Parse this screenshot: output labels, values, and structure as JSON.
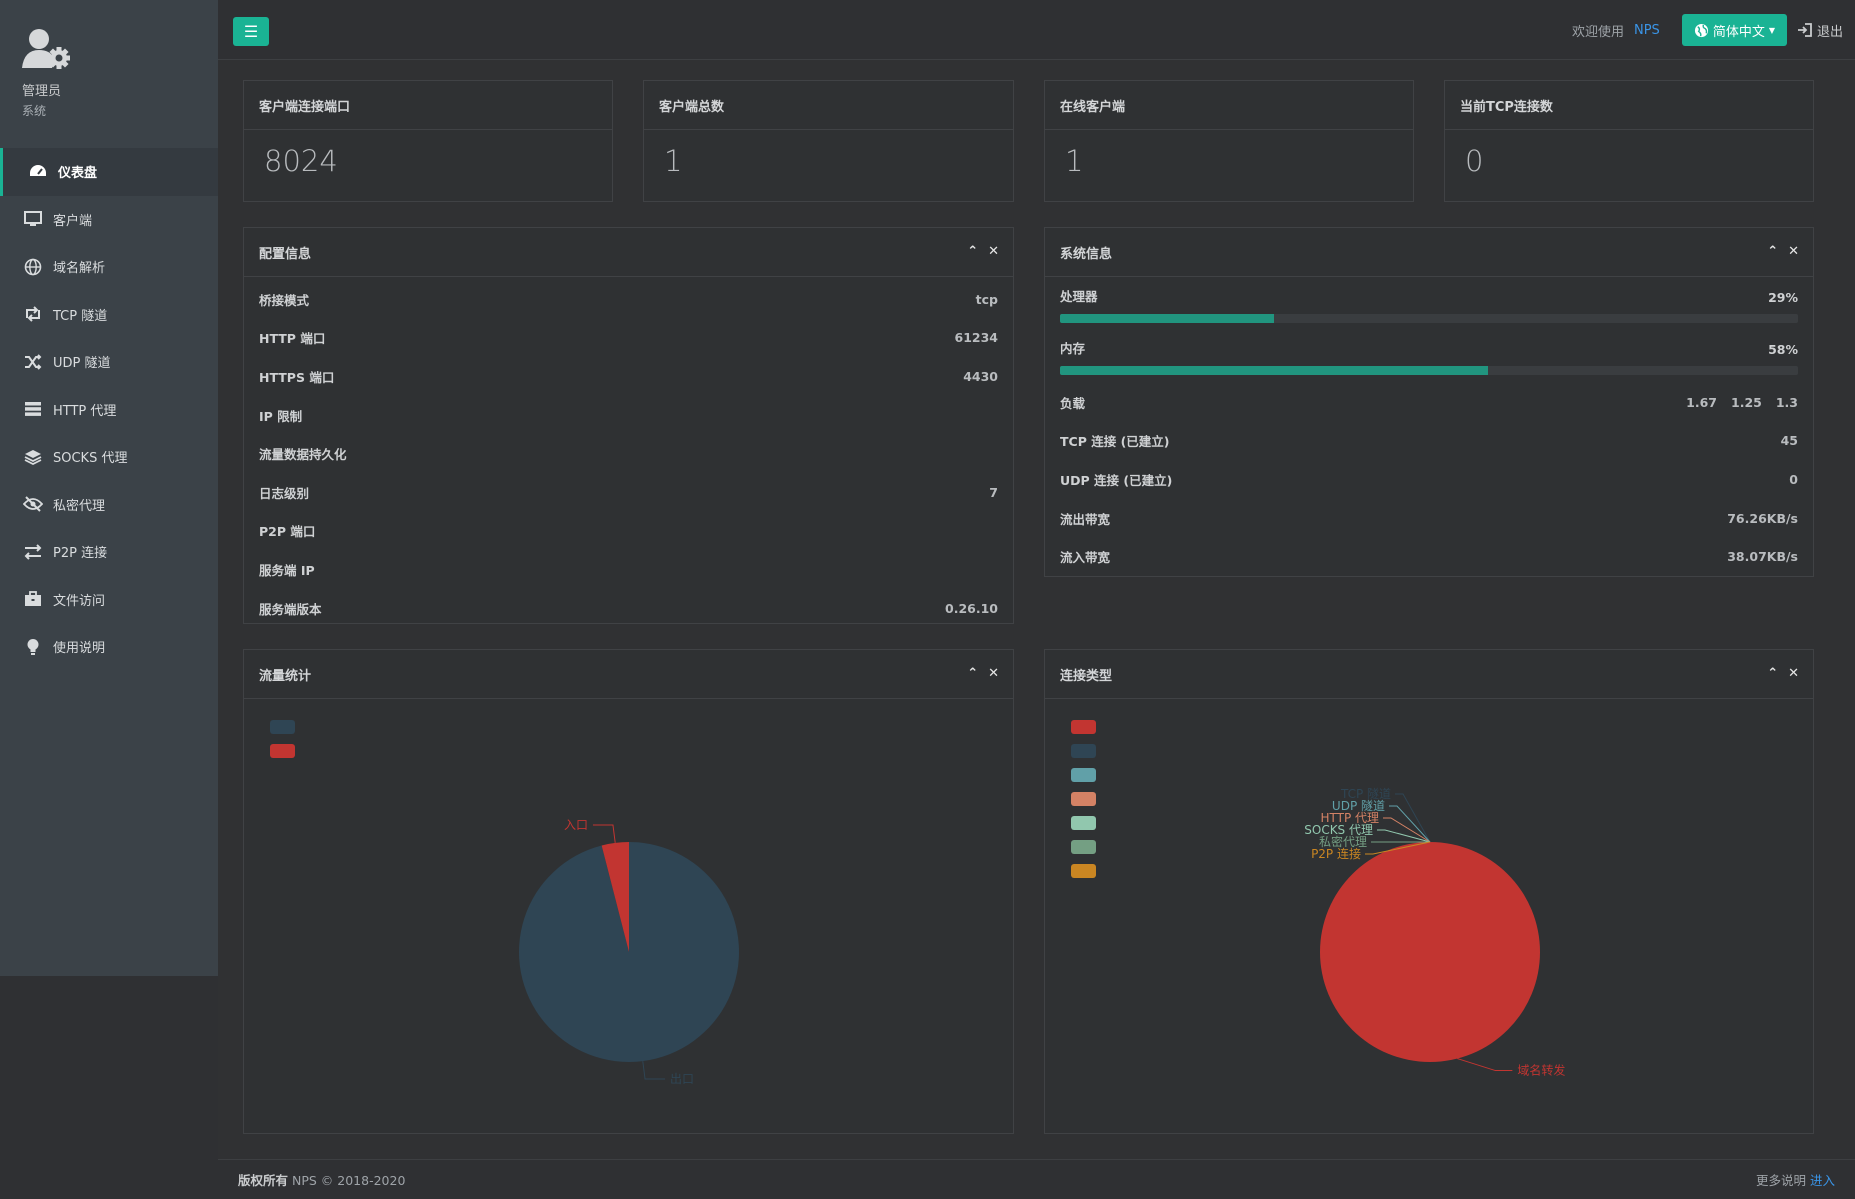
{
  "sidebar": {
    "profile": {
      "name": "管理员",
      "role": "系统"
    },
    "items": [
      {
        "label": "仪表盘",
        "icon": "dashboard-icon"
      },
      {
        "label": "客户端",
        "icon": "monitor-icon"
      },
      {
        "label": "域名解析",
        "icon": "globe-icon"
      },
      {
        "label": "TCP 隧道",
        "icon": "retweet-icon"
      },
      {
        "label": "UDP 隧道",
        "icon": "shuffle-icon"
      },
      {
        "label": "HTTP 代理",
        "icon": "server-icon"
      },
      {
        "label": "SOCKS 代理",
        "icon": "layers-icon"
      },
      {
        "label": "私密代理",
        "icon": "eye-slash-icon"
      },
      {
        "label": "P2P 连接",
        "icon": "exchange-icon"
      },
      {
        "label": "文件访问",
        "icon": "briefcase-icon"
      },
      {
        "label": "使用说明",
        "icon": "lightbulb-icon"
      }
    ]
  },
  "topbar": {
    "welcome": "欢迎使用",
    "brand": "NPS",
    "language": "简体中文",
    "logout": "退出"
  },
  "stats": [
    {
      "title": "客户端连接端口",
      "value": "8024"
    },
    {
      "title": "客户端总数",
      "value": "1"
    },
    {
      "title": "在线客户端",
      "value": "1"
    },
    {
      "title": "当前TCP连接数",
      "value": "0"
    }
  ],
  "config": {
    "title": "配置信息",
    "rows": [
      {
        "k": "桥接模式",
        "v": "tcp"
      },
      {
        "k": "HTTP 端口",
        "v": "61234"
      },
      {
        "k": "HTTPS 端口",
        "v": "4430"
      },
      {
        "k": "IP 限制",
        "v": ""
      },
      {
        "k": "流量数据持久化",
        "v": ""
      },
      {
        "k": "日志级别",
        "v": "7"
      },
      {
        "k": "P2P 端口",
        "v": ""
      },
      {
        "k": "服务端 IP",
        "v": ""
      },
      {
        "k": "服务端版本",
        "v": "0.26.10"
      }
    ]
  },
  "system": {
    "title": "系统信息",
    "cpu": {
      "label": "处理器",
      "value": "29%",
      "fraction": 0.29
    },
    "memory": {
      "label": "内存",
      "value": "58%",
      "fraction": 0.58
    },
    "load": {
      "label": "负载",
      "values": [
        "1.67",
        "1.25",
        "1.3"
      ]
    },
    "rows": [
      {
        "k": "TCP 连接 (已建立)",
        "v": "45"
      },
      {
        "k": "UDP 连接 (已建立)",
        "v": "0"
      },
      {
        "k": "流出带宽",
        "v": "76.26KB/s"
      },
      {
        "k": "流入带宽",
        "v": "38.07KB/s"
      }
    ]
  },
  "traffic_panel": {
    "title": "流量统计"
  },
  "conn_panel": {
    "title": "连接类型"
  },
  "chart_data": [
    {
      "type": "pie",
      "title": "",
      "categories": [
        "出口",
        "入口"
      ],
      "values": [
        96,
        4
      ],
      "colors": [
        "#2f4554",
        "#c23531"
      ]
    },
    {
      "type": "pie",
      "title": "",
      "categories": [
        "域名转发",
        "TCP 隧道",
        "UDP 隧道",
        "HTTP 代理",
        "SOCKS 代理",
        "私密代理",
        "P2P 连接"
      ],
      "values": [
        100,
        0,
        0,
        0,
        0,
        0,
        0
      ],
      "colors": [
        "#c23531",
        "#2f4554",
        "#61a0a8",
        "#d48265",
        "#91c7ae",
        "#749f83",
        "#ca8622"
      ]
    }
  ],
  "footer": {
    "copyright_label": "版权所有",
    "copyright_text": "NPS © 2018-2020",
    "more": "更多说明",
    "enter": "进入"
  }
}
